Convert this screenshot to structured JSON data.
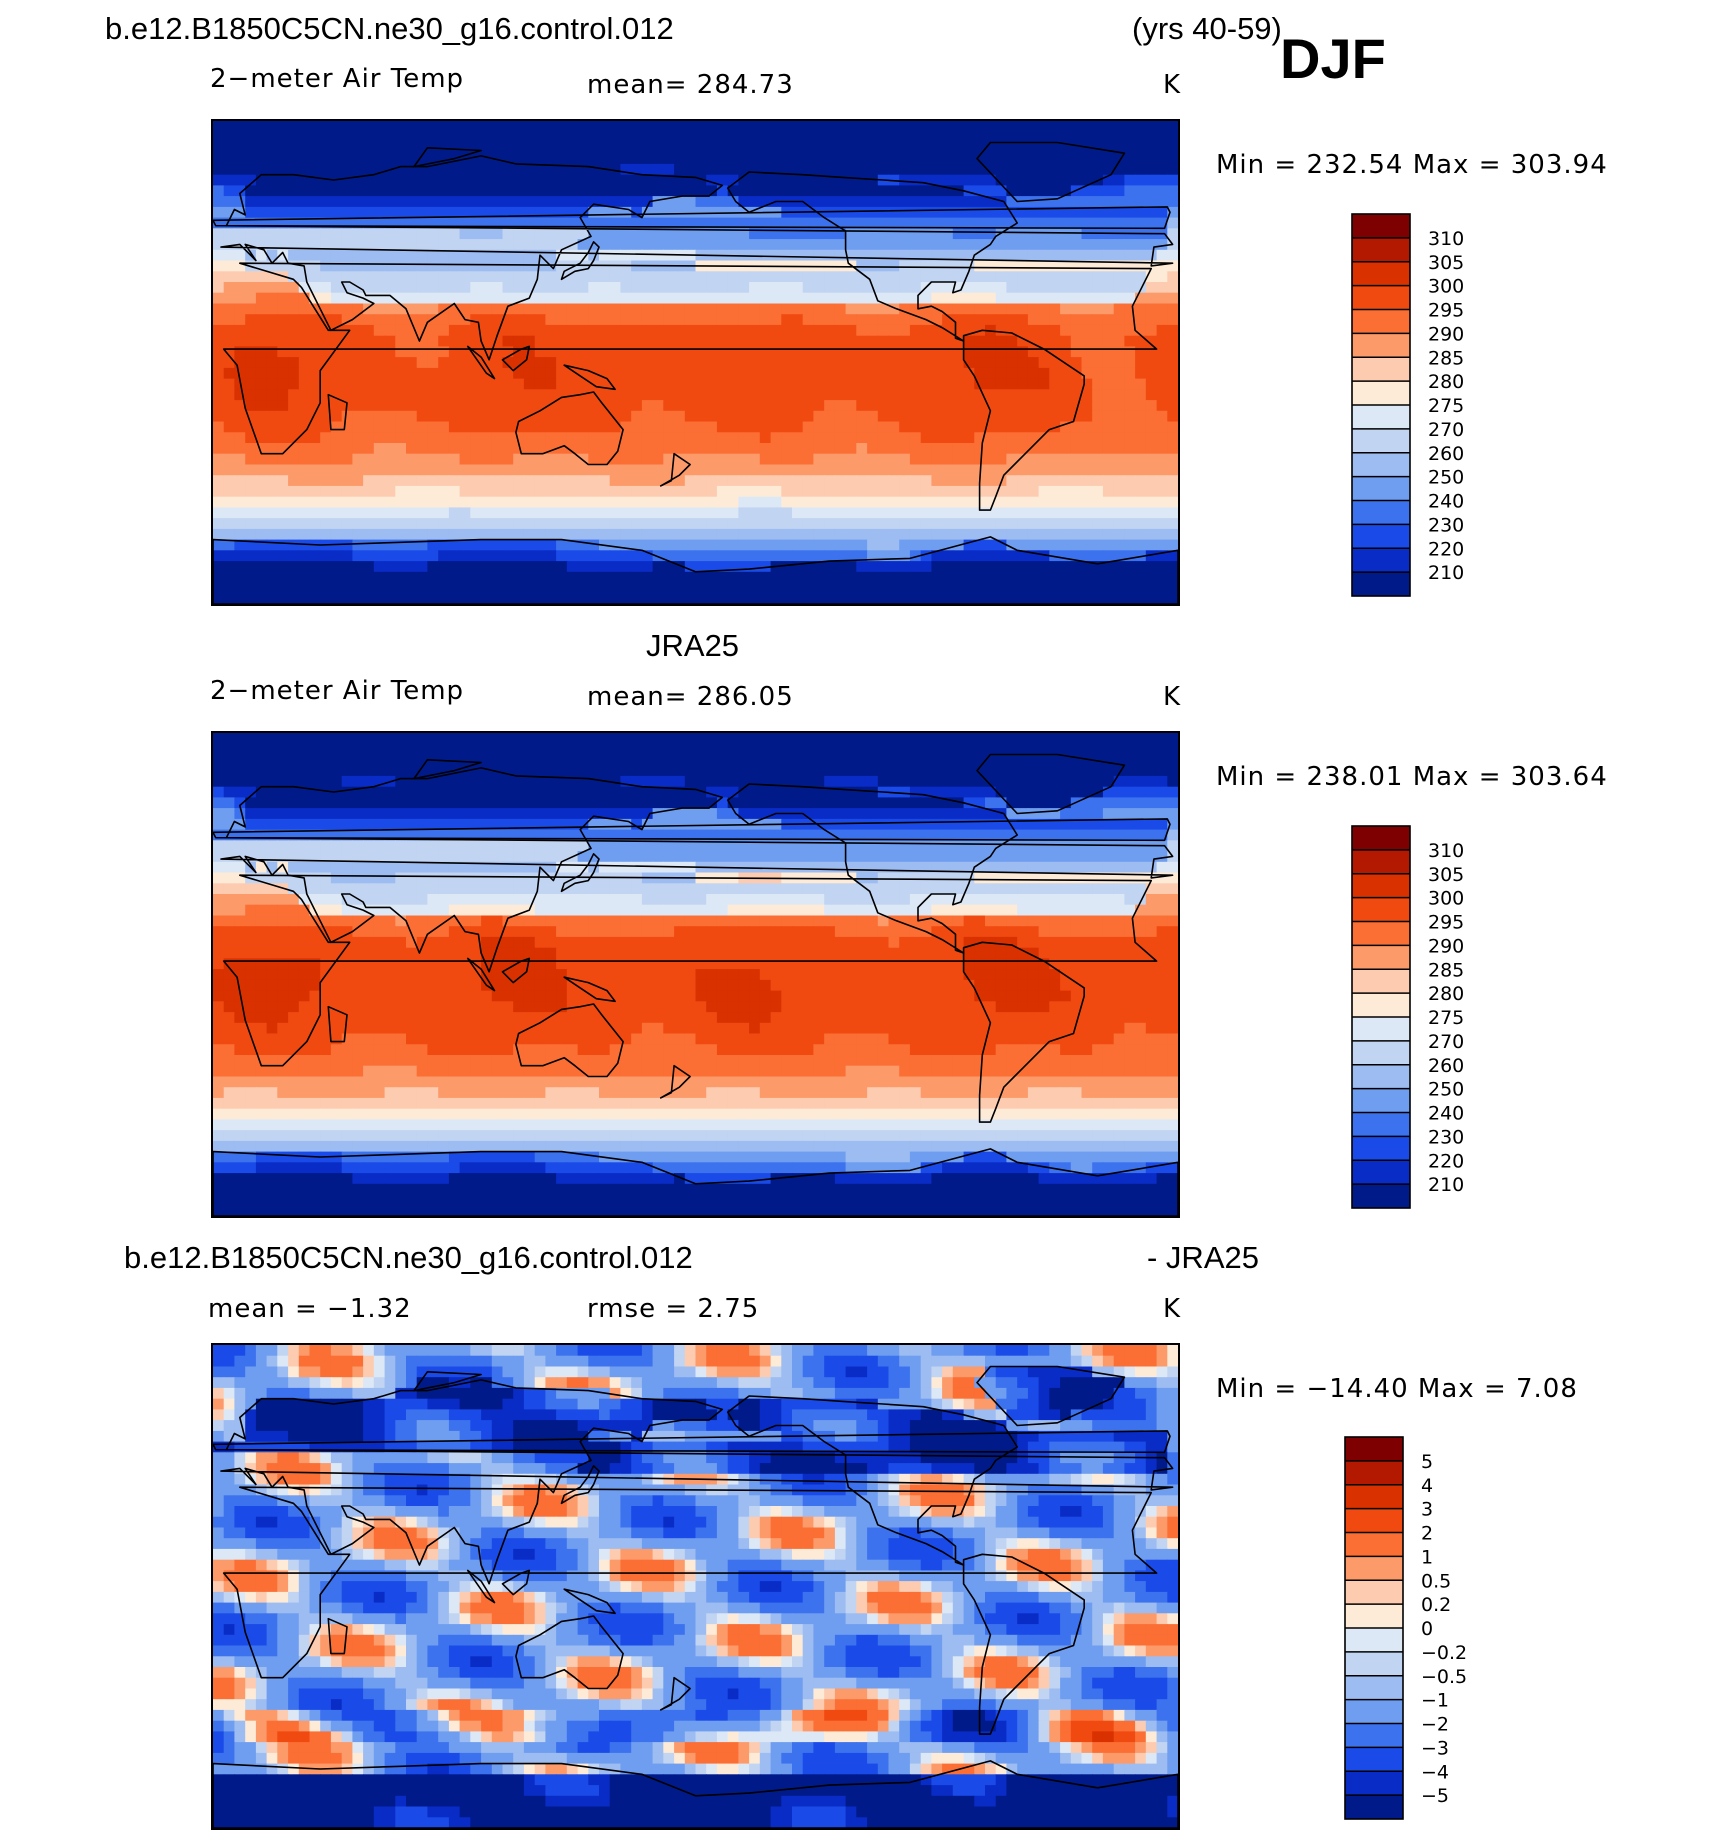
{
  "header": {
    "case_name": "b.e12.B1850C5CN.ne30_g16.control.012",
    "years": "(yrs 40-59)",
    "season": "DJF"
  },
  "panels": [
    {
      "id": "model",
      "title": "",
      "variable": "2−meter Air Temp",
      "stat": "mean=  284.73",
      "units": "K",
      "minmax": "Min  =  232.54  Max  =  303.94",
      "field": "model",
      "colorbar": {
        "labels": [
          "310",
          "305",
          "300",
          "295",
          "290",
          "285",
          "280",
          "275",
          "270",
          "260",
          "250",
          "240",
          "230",
          "220",
          "210"
        ],
        "colors": [
          "#7f0000",
          "#b31800",
          "#d93100",
          "#f14a10",
          "#fb6f35",
          "#fc9a6a",
          "#fdcbb0",
          "#fdebd7",
          "#dde8f6",
          "#c1d4f2",
          "#9dbcf1",
          "#6f9ef0",
          "#3d72ee",
          "#1a4be8",
          "#0a2cc6",
          "#001a8a"
        ]
      }
    },
    {
      "id": "obs",
      "title": "JRA25",
      "variable": "2−meter Air Temp",
      "stat": "mean=  286.05",
      "units": "K",
      "minmax": "Min  =  238.01  Max  =  303.64",
      "field": "obs",
      "colorbar": {
        "labels": [
          "310",
          "305",
          "300",
          "295",
          "290",
          "285",
          "280",
          "275",
          "270",
          "260",
          "250",
          "240",
          "230",
          "220",
          "210"
        ],
        "colors": [
          "#7f0000",
          "#b31800",
          "#d93100",
          "#f14a10",
          "#fb6f35",
          "#fc9a6a",
          "#fdcbb0",
          "#fdebd7",
          "#dde8f6",
          "#c1d4f2",
          "#9dbcf1",
          "#6f9ef0",
          "#3d72ee",
          "#1a4be8",
          "#0a2cc6",
          "#001a8a"
        ]
      }
    },
    {
      "id": "diff",
      "title_left": "b.e12.B1850C5CN.ne30_g16.control.012",
      "title_right": "- JRA25",
      "variable": "mean  =    −1.32",
      "stat": "rmse  =     2.75",
      "units": "K",
      "minmax": "Min  =  −14.40  Max  =      7.08",
      "field": "diff",
      "colorbar": {
        "labels": [
          "5",
          "4",
          "3",
          "2",
          "1",
          "0.5",
          "0.2",
          "0",
          "−0.2",
          "−0.5",
          "−1",
          "−2",
          "−3",
          "−4",
          "−5"
        ],
        "colors": [
          "#7f0000",
          "#b31800",
          "#d93100",
          "#f14a10",
          "#fb6f35",
          "#fc9a6a",
          "#fdcbb0",
          "#fdebd7",
          "#dde8f6",
          "#c1d4f2",
          "#9dbcf1",
          "#6f9ef0",
          "#3d72ee",
          "#1a4be8",
          "#0a2cc6",
          "#001a8a"
        ]
      }
    }
  ]
}
